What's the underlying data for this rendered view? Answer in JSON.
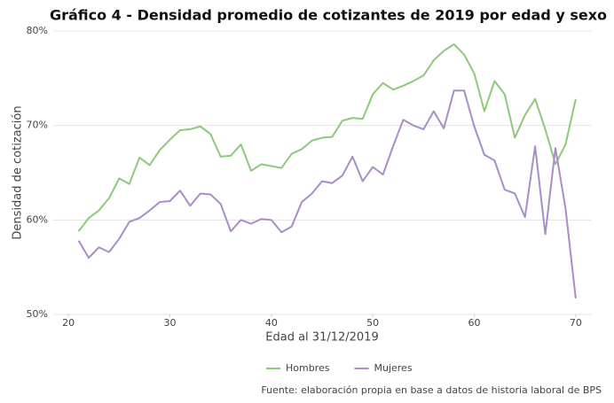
{
  "chart_data": {
    "type": "line",
    "title": "Gráfico 4 - Densidad promedio de cotizantes de 2019 por edad y sexo",
    "x_label": "Edad al 31/12/2019",
    "y_label": "Densidad de cotización",
    "source": "Fuente: elaboración propia en base a datos de historia laboral de BPS",
    "x": [
      21,
      22,
      23,
      24,
      25,
      26,
      27,
      28,
      29,
      30,
      31,
      32,
      33,
      34,
      35,
      36,
      37,
      38,
      39,
      40,
      41,
      42,
      43,
      44,
      45,
      46,
      47,
      48,
      49,
      50,
      51,
      52,
      53,
      54,
      55,
      56,
      57,
      58,
      59,
      60,
      61,
      62,
      63,
      64,
      65,
      66,
      67,
      68,
      69,
      70
    ],
    "series": [
      {
        "name": "Hombres",
        "color": "#8cc97a",
        "values": [
          58.8,
          60.2,
          61.0,
          62.3,
          64.4,
          63.8,
          66.6,
          65.8,
          67.4,
          68.5,
          69.5,
          69.6,
          69.9,
          69.1,
          66.7,
          66.8,
          68.0,
          65.2,
          65.9,
          65.7,
          65.5,
          67.0,
          67.5,
          68.4,
          68.7,
          68.8,
          70.5,
          70.8,
          70.7,
          73.3,
          74.5,
          73.8,
          74.2,
          74.7,
          75.3,
          76.9,
          77.9,
          78.6,
          77.5,
          75.5,
          71.5,
          74.7,
          73.3,
          68.7,
          71.1,
          72.8,
          69.6,
          65.9,
          68.0,
          72.8
        ]
      },
      {
        "name": "Mujeres",
        "color": "#a98dc4",
        "values": [
          57.8,
          56.0,
          57.1,
          56.6,
          58.0,
          59.8,
          60.2,
          61.0,
          61.9,
          62.0,
          63.1,
          61.5,
          62.8,
          62.7,
          61.7,
          58.8,
          60.0,
          59.6,
          60.1,
          60.0,
          58.7,
          59.3,
          61.9,
          62.8,
          64.1,
          63.9,
          64.7,
          66.7,
          64.1,
          65.6,
          64.8,
          67.8,
          70.6,
          70.0,
          69.6,
          71.5,
          69.7,
          73.7,
          73.7,
          69.9,
          66.9,
          66.3,
          63.2,
          62.8,
          60.3,
          67.8,
          58.5,
          67.6,
          61.2,
          51.7
        ]
      }
    ],
    "xlim": [
      18.5,
      71.5
    ],
    "xticks": [
      20,
      30,
      40,
      50,
      60,
      70
    ],
    "ylim": [
      50,
      80
    ],
    "yticks": [
      {
        "value": 50,
        "label": "50%"
      },
      {
        "value": 60,
        "label": "60%"
      },
      {
        "value": 70,
        "label": "70%"
      },
      {
        "value": 80,
        "label": "80%"
      }
    ],
    "grid": true,
    "legend": "bottom"
  }
}
